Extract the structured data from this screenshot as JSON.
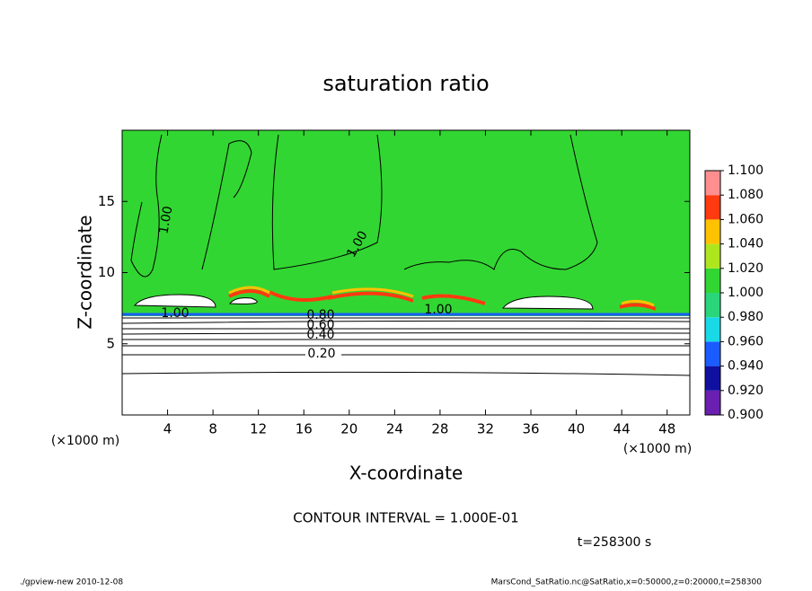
{
  "chart_data": {
    "type": "contour",
    "title": "saturation ratio",
    "xlabel": "X-coordinate",
    "ylabel": "Z-coordinate",
    "x_unit": "(×1000 m)",
    "xlim": [
      0,
      50
    ],
    "ylim": [
      0,
      20
    ],
    "xticks": [
      4,
      8,
      12,
      16,
      20,
      24,
      28,
      32,
      36,
      40,
      44,
      48
    ],
    "yticks": [
      5,
      10,
      15
    ],
    "colorbar": {
      "levels": [
        {
          "value": 0.9,
          "label": "0.900"
        },
        {
          "value": 0.92,
          "label": "0.920"
        },
        {
          "value": 0.94,
          "label": "0.940"
        },
        {
          "value": 0.96,
          "label": "0.960"
        },
        {
          "value": 0.98,
          "label": "0.980"
        },
        {
          "value": 1.0,
          "label": "1.000"
        },
        {
          "value": 1.02,
          "label": "1.020"
        },
        {
          "value": 1.04,
          "label": "1.040"
        },
        {
          "value": 1.06,
          "label": "1.060"
        },
        {
          "value": 1.08,
          "label": "1.080"
        },
        {
          "value": 1.1,
          "label": "1.100"
        }
      ],
      "colors": [
        "#6a1fb0",
        "#1010a0",
        "#1a5cff",
        "#19d9e6",
        "#2ad67a",
        "#32d632",
        "#aee61e",
        "#ffc200",
        "#ff3a10",
        "#ff8f8f"
      ]
    },
    "contour_labels": [
      "1.00",
      "1.00",
      "1.00",
      "1.00",
      "0.80",
      "0.60",
      "0.40",
      "0.20"
    ],
    "contour_interval": "CONTOUR INTERVAL = 1.000E-01",
    "time": "t=258300 s"
  },
  "footer": {
    "left": "./gpview-new  2010-12-08",
    "right": "MarsCond_SatRatio.nc@SatRatio,x=0:50000,z=0:20000,t=258300"
  }
}
